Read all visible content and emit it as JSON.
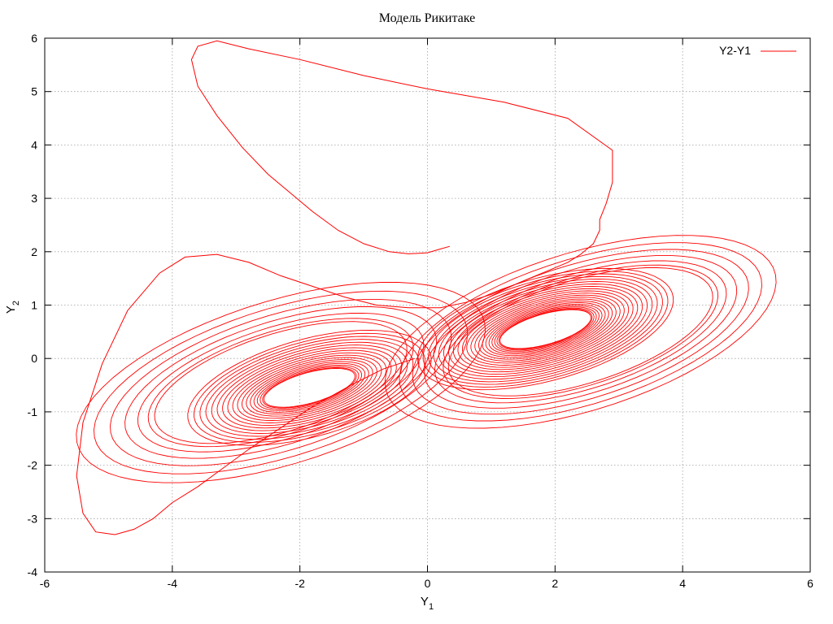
{
  "chart_data": {
    "type": "line",
    "title": "Модель Рикитаке",
    "xlabel": {
      "main": "Y",
      "sub": "1"
    },
    "ylabel": {
      "main": "Y",
      "sub": "2"
    },
    "xlim": [
      -6,
      6
    ],
    "ylim": [
      -4,
      6
    ],
    "xticks": [
      -6,
      -4,
      -2,
      0,
      2,
      4,
      6
    ],
    "yticks": [
      -4,
      -3,
      -2,
      -1,
      0,
      1,
      2,
      3,
      4,
      5,
      6
    ],
    "grid": true,
    "legend_position": "top-right",
    "series": [
      {
        "name": "Y2-Y1",
        "color": "#ff0000",
        "x": [
          0.35,
          0.2,
          0.0,
          -0.3,
          -0.6,
          -1.0,
          -1.4,
          -1.8,
          -2.1,
          -2.5,
          -2.9,
          -3.3,
          -3.6,
          -3.7,
          -3.6,
          -3.3,
          -2.8,
          -2.0,
          -1.0,
          0.0,
          1.2,
          2.2,
          2.9,
          2.9,
          2.8,
          2.7,
          2.7,
          2.6,
          2.4,
          2.2,
          1.9,
          1.6,
          1.3,
          1.0,
          0.6,
          0.2,
          -0.3,
          -0.8,
          -1.3,
          -1.8,
          -2.3,
          -2.8,
          -3.3,
          -3.8,
          -4.2,
          -4.7,
          -5.1,
          -5.4,
          -5.5,
          -5.4,
          -5.2,
          -4.9,
          -4.6,
          -4.3,
          -4.0,
          -3.6,
          -3.2,
          -2.8,
          -2.3,
          -1.8,
          -1.2,
          -0.7,
          -0.2
        ],
        "y": [
          2.1,
          2.05,
          1.98,
          1.96,
          2.0,
          2.15,
          2.4,
          2.75,
          3.05,
          3.45,
          3.95,
          4.55,
          5.1,
          5.6,
          5.85,
          5.95,
          5.8,
          5.6,
          5.3,
          5.05,
          4.8,
          4.5,
          3.9,
          3.3,
          2.9,
          2.6,
          2.4,
          2.15,
          1.95,
          1.8,
          1.65,
          1.5,
          1.35,
          1.2,
          1.05,
          0.95,
          0.95,
          1.0,
          1.15,
          1.35,
          1.55,
          1.8,
          1.95,
          1.9,
          1.6,
          0.9,
          -0.1,
          -1.2,
          -2.2,
          -2.9,
          -3.25,
          -3.3,
          -3.2,
          -3.0,
          -2.7,
          -2.4,
          -2.05,
          -1.7,
          -1.3,
          -0.9,
          -0.5,
          -0.2,
          0.0
        ]
      }
    ]
  }
}
